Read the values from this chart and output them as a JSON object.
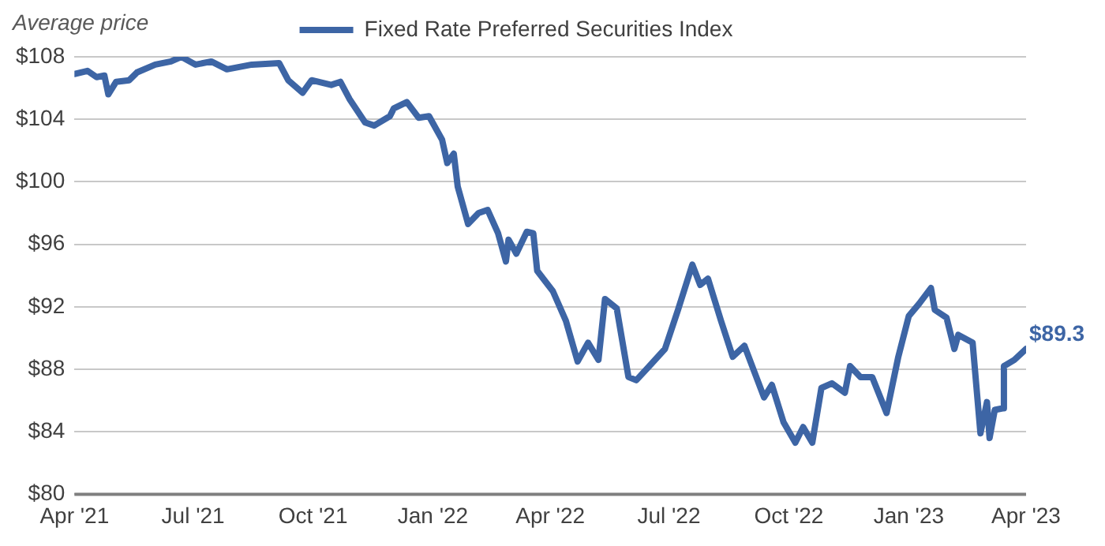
{
  "chart_data": {
    "type": "line",
    "ylabel": "Average price",
    "legend": "top",
    "grid": "y",
    "marker": "none",
    "line_style": "solid",
    "x": [
      "2021-04-01",
      "2021-04-11",
      "2021-04-18",
      "2021-04-24",
      "2021-04-27",
      "2021-05-03",
      "2021-05-13",
      "2021-05-19",
      "2021-06-02",
      "2021-06-14",
      "2021-06-22",
      "2021-07-03",
      "2021-07-15",
      "2021-07-27",
      "2021-08-15",
      "2021-09-05",
      "2021-09-12",
      "2021-09-23",
      "2021-09-30",
      "2021-10-15",
      "2021-10-22",
      "2021-10-29",
      "2021-11-10",
      "2021-11-17",
      "2021-11-29",
      "2021-12-02",
      "2021-12-12",
      "2021-12-21",
      "2021-12-29",
      "2022-01-08",
      "2022-01-12",
      "2022-01-17",
      "2022-01-20",
      "2022-01-28",
      "2022-02-05",
      "2022-02-12",
      "2022-02-20",
      "2022-02-26",
      "2022-02-28",
      "2022-03-06",
      "2022-03-14",
      "2022-03-19",
      "2022-03-22",
      "2022-04-03",
      "2022-04-13",
      "2022-04-22",
      "2022-04-30",
      "2022-05-08",
      "2022-05-13",
      "2022-05-22",
      "2022-05-31",
      "2022-06-06",
      "2022-06-16",
      "2022-06-28",
      "2022-07-08",
      "2022-07-19",
      "2022-07-25",
      "2022-07-31",
      "2022-08-10",
      "2022-08-19",
      "2022-08-28",
      "2022-09-12",
      "2022-09-18",
      "2022-09-27",
      "2022-10-06",
      "2022-10-12",
      "2022-10-19",
      "2022-10-26",
      "2022-11-03",
      "2022-11-13",
      "2022-11-17",
      "2022-11-25",
      "2022-12-04",
      "2022-12-15",
      "2022-12-24",
      "2023-01-01",
      "2023-01-09",
      "2023-01-18",
      "2023-01-21",
      "2023-01-30",
      "2023-02-05",
      "2023-02-08",
      "2023-02-19",
      "2023-02-25",
      "2023-03-02",
      "2023-03-04",
      "2023-03-08",
      "2023-03-14",
      "2023-03-15",
      "2023-03-23",
      "2023-04-01"
    ],
    "series": [
      {
        "name": "Fixed Rate Preferred Securities Index",
        "color": "#3d65a5",
        "values": [
          106.9,
          107.1,
          106.7,
          106.8,
          105.6,
          106.4,
          106.5,
          107.0,
          107.5,
          107.7,
          108.0,
          107.5,
          107.7,
          107.2,
          107.5,
          107.6,
          106.5,
          105.7,
          106.5,
          106.2,
          106.4,
          105.3,
          103.8,
          103.6,
          104.2,
          104.7,
          105.1,
          104.1,
          104.2,
          102.7,
          101.2,
          101.8,
          99.7,
          97.3,
          98.0,
          98.2,
          96.7,
          94.9,
          96.3,
          95.4,
          96.8,
          96.7,
          94.3,
          93.0,
          91.1,
          88.5,
          89.7,
          88.6,
          92.5,
          91.9,
          87.5,
          87.3,
          88.2,
          89.3,
          91.8,
          94.7,
          93.4,
          93.8,
          91.1,
          88.8,
          89.5,
          86.2,
          87.0,
          84.6,
          83.3,
          84.3,
          83.3,
          86.8,
          87.1,
          86.5,
          88.2,
          87.5,
          87.5,
          85.2,
          88.8,
          91.4,
          92.2,
          93.2,
          91.8,
          91.3,
          89.3,
          90.2,
          89.7,
          83.9,
          85.9,
          83.6,
          85.4,
          85.5,
          88.2,
          88.6,
          89.3
        ]
      }
    ],
    "xlim": [
      "2021-04-01",
      "2023-04-01"
    ],
    "xticks": [
      {
        "value": "2021-04-01",
        "label": "Apr '21"
      },
      {
        "value": "2021-07-01",
        "label": "Jul '21"
      },
      {
        "value": "2021-10-01",
        "label": "Oct '21"
      },
      {
        "value": "2022-01-01",
        "label": "Jan '22"
      },
      {
        "value": "2022-04-01",
        "label": "Apr '22"
      },
      {
        "value": "2022-07-01",
        "label": "Jul '22"
      },
      {
        "value": "2022-10-01",
        "label": "Oct '22"
      },
      {
        "value": "2023-01-01",
        "label": "Jan '23"
      },
      {
        "value": "2023-04-01",
        "label": "Apr '23"
      }
    ],
    "ylim": [
      80,
      108
    ],
    "yticks": [
      {
        "value": 80,
        "label": "$80"
      },
      {
        "value": 84,
        "label": "$84"
      },
      {
        "value": 88,
        "label": "$88"
      },
      {
        "value": 92,
        "label": "$92"
      },
      {
        "value": 96,
        "label": "$96"
      },
      {
        "value": 100,
        "label": "$100"
      },
      {
        "value": 104,
        "label": "$104"
      },
      {
        "value": 108,
        "label": "$108"
      }
    ],
    "annotations": [
      {
        "text": "$89.3",
        "x": "2023-04-01",
        "y": 89.3
      }
    ]
  }
}
